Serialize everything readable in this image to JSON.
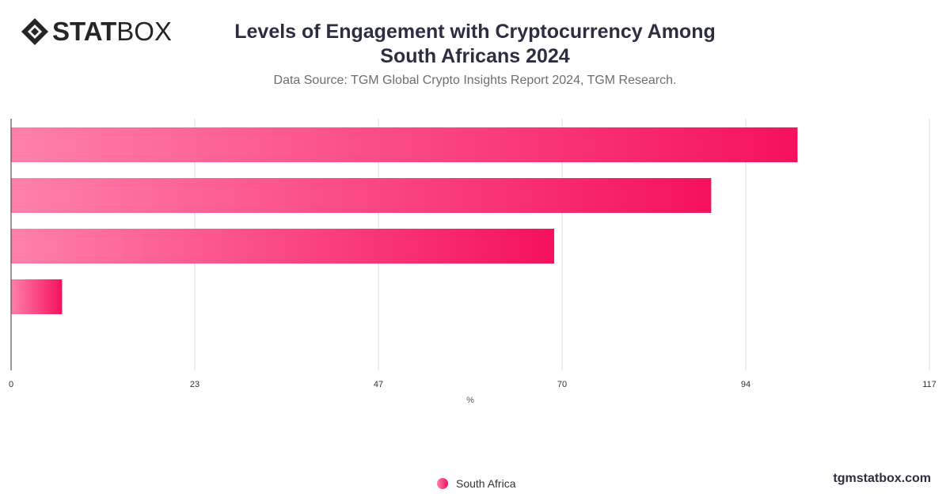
{
  "brand": {
    "logo_bold": "STAT",
    "logo_light": "BOX",
    "watermark": "tgmstatbox.com"
  },
  "header": {
    "title_line1": "Levels of Engagement with Cryptocurrency Among",
    "title_line2": "South Africans 2024",
    "subtitle": "Data Source: TGM Global Crypto Insights Report 2024, TGM Research."
  },
  "colors": {
    "bar_start": "#ff80ab",
    "bar_end": "#f5115e",
    "grid": "#dddddd",
    "axis": "#333333",
    "text": "#333333"
  },
  "chart_data": {
    "type": "bar",
    "orientation": "horizontal",
    "categories": [
      "",
      "",
      "",
      ""
    ],
    "series": [
      {
        "name": "South Africa",
        "values": [
          100.2,
          89.2,
          69.2,
          6.5
        ]
      }
    ],
    "xlabel": "%",
    "ylabel": "",
    "xlim": [
      0,
      117
    ],
    "xticks": [
      "0",
      "23",
      "47",
      "70",
      "94",
      "117"
    ],
    "grid": true,
    "legend": "bottom-center"
  }
}
